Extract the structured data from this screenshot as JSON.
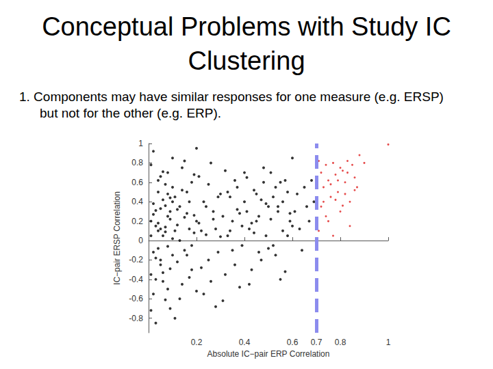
{
  "chart_data": {
    "type": "scatter",
    "title": "Conceptual Problems with Study IC Clustering",
    "subtitle": "1. Components may have similar responses for one measure (e.g. ERSP) but not for the other (e.g. ERP).",
    "x_label": "Absolute IC−pair ERP Correlation",
    "y_label": "IC−pair ERSP Correlation",
    "xlim": [
      0,
      1
    ],
    "xticks": [
      0.2,
      0.4,
      0.6,
      0.7,
      0.8,
      1
    ],
    "ylim": [
      -0.95,
      1
    ],
    "yticks": [
      -0.8,
      -0.6,
      -0.4,
      -0.2,
      0,
      0.2,
      0.4,
      0.6,
      0.8,
      1
    ],
    "grid": false,
    "threshold": {
      "x": 0.7,
      "color": "#8c8cee",
      "line_style": "dashed"
    },
    "series": [
      {
        "color": "#000000",
        "marker": "circle",
        "x": [
          0.01,
          0.02,
          0.03,
          0.04,
          0.05,
          0.06,
          0.07,
          0.08,
          0.09,
          0.1,
          0.01,
          0.02,
          0.03,
          0.04,
          0.05,
          0.06,
          0.07,
          0.08,
          0.09,
          0.1,
          0.01,
          0.02,
          0.03,
          0.04,
          0.05,
          0.06,
          0.07,
          0.08,
          0.09,
          0.1,
          0.01,
          0.02,
          0.03,
          0.04,
          0.05,
          0.06,
          0.07,
          0.08,
          0.09,
          0.1,
          0.01,
          0.02,
          0.03,
          0.04,
          0.05,
          0.06,
          0.07,
          0.08,
          0.09,
          0.1,
          0.11,
          0.12,
          0.13,
          0.14,
          0.15,
          0.16,
          0.17,
          0.18,
          0.19,
          0.2,
          0.11,
          0.12,
          0.13,
          0.14,
          0.15,
          0.16,
          0.17,
          0.18,
          0.19,
          0.2,
          0.11,
          0.12,
          0.13,
          0.14,
          0.15,
          0.16,
          0.17,
          0.18,
          0.19,
          0.2,
          0.21,
          0.22,
          0.23,
          0.24,
          0.25,
          0.26,
          0.27,
          0.28,
          0.29,
          0.3,
          0.21,
          0.22,
          0.23,
          0.24,
          0.25,
          0.26,
          0.27,
          0.28,
          0.29,
          0.3,
          0.31,
          0.32,
          0.33,
          0.34,
          0.35,
          0.36,
          0.37,
          0.38,
          0.39,
          0.4,
          0.31,
          0.32,
          0.33,
          0.34,
          0.35,
          0.36,
          0.37,
          0.38,
          0.39,
          0.4,
          0.41,
          0.42,
          0.43,
          0.44,
          0.45,
          0.46,
          0.47,
          0.48,
          0.49,
          0.5,
          0.41,
          0.42,
          0.43,
          0.44,
          0.45,
          0.46,
          0.47,
          0.48,
          0.49,
          0.5,
          0.51,
          0.52,
          0.53,
          0.54,
          0.55,
          0.56,
          0.57,
          0.58,
          0.59,
          0.6,
          0.51,
          0.52,
          0.53,
          0.54,
          0.55,
          0.56,
          0.57,
          0.58,
          0.59,
          0.6,
          0.61,
          0.62,
          0.63,
          0.64,
          0.65,
          0.66,
          0.67,
          0.68,
          0.69
        ],
        "values": [
          0.05,
          -0.12,
          0.31,
          0.18,
          -0.25,
          0.42,
          0.09,
          -0.06,
          0.22,
          0.55,
          -0.35,
          0.27,
          -0.18,
          0.62,
          0.12,
          -0.42,
          0.36,
          0.48,
          -0.29,
          0.02,
          0.78,
          -0.55,
          0.15,
          -0.08,
          0.33,
          0.71,
          -0.61,
          0.25,
          0.44,
          -0.15,
          -0.72,
          0.92,
          -0.4,
          0.5,
          -0.2,
          0.05,
          0.58,
          -0.5,
          0.3,
          0.85,
          0.2,
          0.38,
          -0.85,
          0.1,
          0.66,
          -0.33,
          0.14,
          0.7,
          -0.7,
          0.4,
          0.1,
          -0.22,
          0.35,
          0.52,
          -0.1,
          0.28,
          -0.38,
          0.6,
          0.08,
          -0.52,
          0.45,
          0.16,
          -0.6,
          0.75,
          0.24,
          -0.15,
          0.4,
          -0.3,
          0.68,
          0.2,
          -0.8,
          0.32,
          0.0,
          -0.45,
          0.82,
          0.5,
          0.12,
          -0.05,
          0.26,
          0.95,
          0.18,
          -0.28,
          0.4,
          0.06,
          0.58,
          -0.42,
          0.3,
          0.12,
          -0.12,
          0.48,
          0.66,
          0.1,
          -0.55,
          0.35,
          -0.2,
          0.8,
          0.22,
          -0.68,
          0.45,
          0.04,
          0.25,
          -0.35,
          0.5,
          0.1,
          -0.1,
          0.62,
          0.32,
          -0.48,
          0.15,
          0.4,
          -0.62,
          0.72,
          0.05,
          0.45,
          0.2,
          -0.25,
          0.55,
          0.28,
          -0.05,
          0.7,
          0.3,
          0.12,
          -0.3,
          0.52,
          0.2,
          -0.12,
          0.42,
          0.6,
          0.05,
          0.35,
          0.65,
          -0.45,
          0.18,
          0.08,
          0.48,
          0.25,
          -0.2,
          0.75,
          0.38,
          -0.08,
          0.22,
          0.45,
          -0.15,
          0.35,
          0.6,
          0.1,
          -0.32,
          0.5,
          0.28,
          0.15,
          0.7,
          -0.05,
          0.55,
          0.3,
          -0.4,
          0.4,
          0.62,
          0.05,
          0.2,
          0.85,
          0.3,
          0.48,
          0.12,
          -0.1,
          0.55,
          0.35,
          0.2,
          0.62,
          0.4
        ]
      },
      {
        "color": "#e02020",
        "marker": "circle",
        "x": [
          0.71,
          0.72,
          0.73,
          0.74,
          0.75,
          0.76,
          0.77,
          0.78,
          0.79,
          0.8,
          0.81,
          0.82,
          0.83,
          0.84,
          0.85,
          0.86,
          0.87,
          0.88,
          0.72,
          0.74,
          0.76,
          0.78,
          0.8,
          0.82,
          0.84,
          0.86,
          0.71,
          0.73,
          0.75,
          0.77,
          0.79,
          0.81,
          0.83,
          0.9,
          1.0
        ],
        "values": [
          0.82,
          0.7,
          0.55,
          0.78,
          0.62,
          0.45,
          0.8,
          0.68,
          0.5,
          0.75,
          0.72,
          0.6,
          0.82,
          0.4,
          0.78,
          0.65,
          0.55,
          0.88,
          0.35,
          0.25,
          0.58,
          0.42,
          0.3,
          0.48,
          0.15,
          0.52,
          0.1,
          0.4,
          0.2,
          0.05,
          0.62,
          0.36,
          0.7,
          0.8,
          0.99
        ]
      }
    ]
  }
}
